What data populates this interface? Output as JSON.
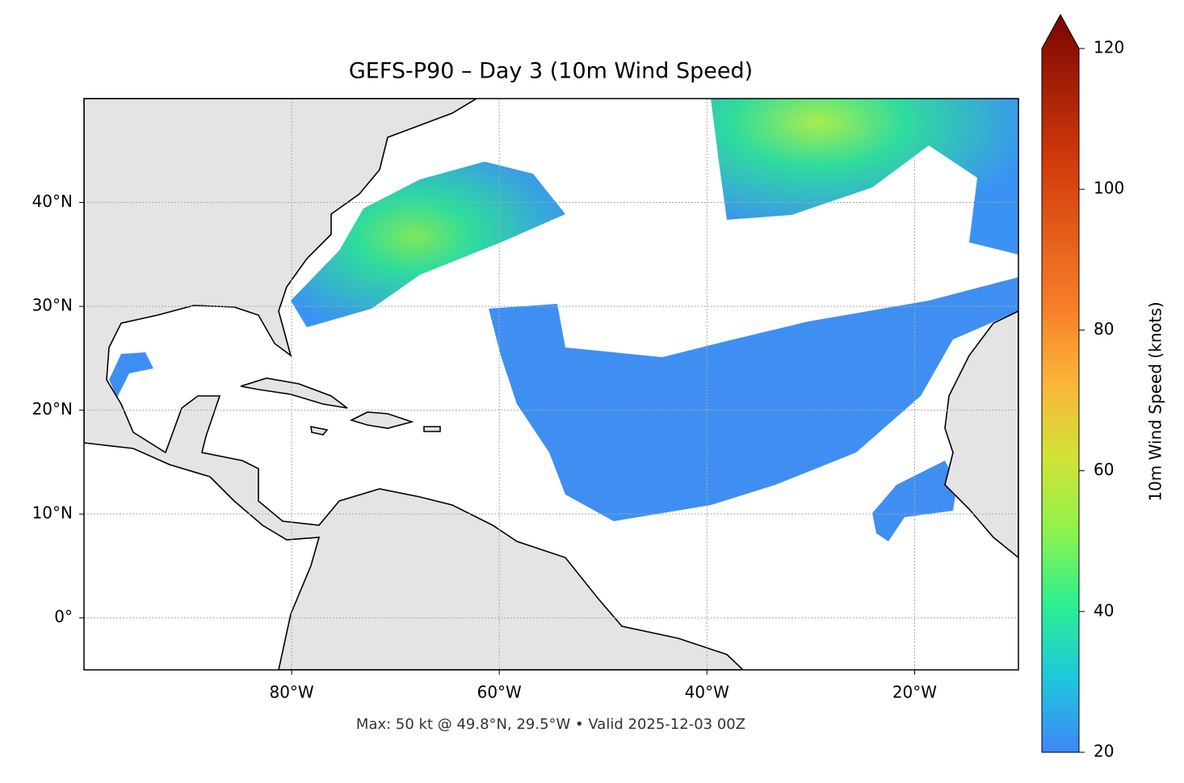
{
  "chart_data": {
    "type": "map",
    "title": "GEFS-P90 – Day 3 (10m Wind Speed)",
    "footnote": "Max: 50 kt @ 49.8°N, 29.5°W • Valid 2025-12-03 00Z",
    "xlim": [
      -100,
      -10
    ],
    "ylim": [
      -5,
      50
    ],
    "xticks": [
      {
        "value": -80,
        "label": "80°W"
      },
      {
        "value": -60,
        "label": "60°W"
      },
      {
        "value": -40,
        "label": "40°W"
      },
      {
        "value": -20,
        "label": "20°W"
      }
    ],
    "yticks": [
      {
        "value": 0,
        "label": "0°"
      },
      {
        "value": 10,
        "label": "10°N"
      },
      {
        "value": 20,
        "label": "20°N"
      },
      {
        "value": 30,
        "label": "30°N"
      },
      {
        "value": 40,
        "label": "40°N"
      }
    ],
    "grid": true,
    "colorbar": {
      "label": "10m Wind Speed (knots)",
      "lim": [
        20,
        120
      ],
      "ticks": [
        20,
        40,
        60,
        80,
        100,
        120
      ]
    }
  }
}
